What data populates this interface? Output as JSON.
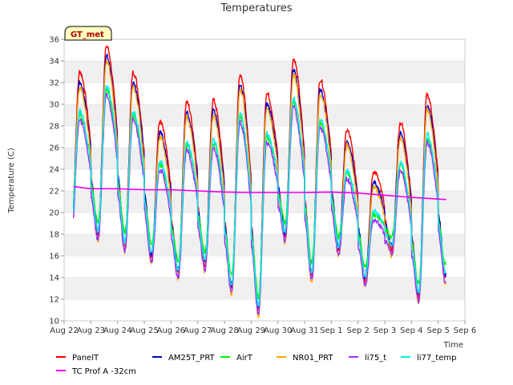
{
  "chart_data": {
    "type": "line",
    "title": "Temperatures",
    "xlabel": "Time",
    "ylabel": "Temperature (C)",
    "badge": "GT_met",
    "xlim": [
      0,
      15
    ],
    "ylim": [
      10,
      36
    ],
    "x_ticks": [
      "Aug 22",
      "Aug 23",
      "Aug 24",
      "Aug 25",
      "Aug 26",
      "Aug 27",
      "Aug 28",
      "Aug 29",
      "Aug 30",
      "Aug 31",
      "Sep 1",
      "Sep 2",
      "Sep 3",
      "Sep 4",
      "Sep 5",
      "Sep 6"
    ],
    "y_ticks": [
      10,
      12,
      14,
      16,
      18,
      20,
      22,
      24,
      26,
      28,
      30,
      32,
      34,
      36
    ],
    "band_color": "#f0f0f0",
    "grid_color": "#dcdcdc",
    "x_start": 0.35,
    "x_end": 14.3,
    "series": [
      {
        "name": "PanelT",
        "color": "#ff0000",
        "peak_offset": 0.0,
        "trough_offset": 0.0
      },
      {
        "name": "AM25T_PRT",
        "color": "#0000cc",
        "peak_offset": -1.0,
        "trough_offset": 0.3
      },
      {
        "name": "AirT",
        "color": "#00ee00",
        "peak_offset": -4.0,
        "trough_offset": 1.2
      },
      {
        "name": "NR01_PRT",
        "color": "#ffa500",
        "peak_offset": -1.4,
        "trough_offset": -0.6
      },
      {
        "name": "li75_t",
        "color": "#9b30ff",
        "peak_offset": -4.5,
        "trough_offset": -0.4
      },
      {
        "name": "li77_temp",
        "color": "#00eeee",
        "peak_offset": -3.7,
        "trough_offset": 0.4
      }
    ],
    "daily_extremes": {
      "day_offset": [
        0,
        1,
        2,
        3,
        4,
        5,
        6,
        7,
        8,
        9,
        10,
        11,
        12,
        13,
        14
      ],
      "panel_peak": [
        33.0,
        35.4,
        33.0,
        28.4,
        30.2,
        30.4,
        32.8,
        31.0,
        34.2,
        32.3,
        27.6,
        23.8,
        28.3,
        30.9,
        null
      ],
      "panel_trough": [
        18.2,
        17.9,
        16.9,
        15.9,
        14.4,
        15.1,
        13.0,
        11.0,
        17.8,
        14.1,
        16.5,
        13.8,
        16.6,
        12.2,
        14.0
      ]
    },
    "tc_prof": {
      "name": "TC Prof A -32cm",
      "color": "#ee00ee",
      "x": [
        0.35,
        1.0,
        2.0,
        3.0,
        4.0,
        5.0,
        6.0,
        7.0,
        8.0,
        9.0,
        10.0,
        11.0,
        12.0,
        13.0,
        14.3
      ],
      "values": [
        22.4,
        22.2,
        22.2,
        22.1,
        22.1,
        22.0,
        21.9,
        21.85,
        21.85,
        21.85,
        21.9,
        21.8,
        21.6,
        21.4,
        21.2
      ]
    }
  }
}
